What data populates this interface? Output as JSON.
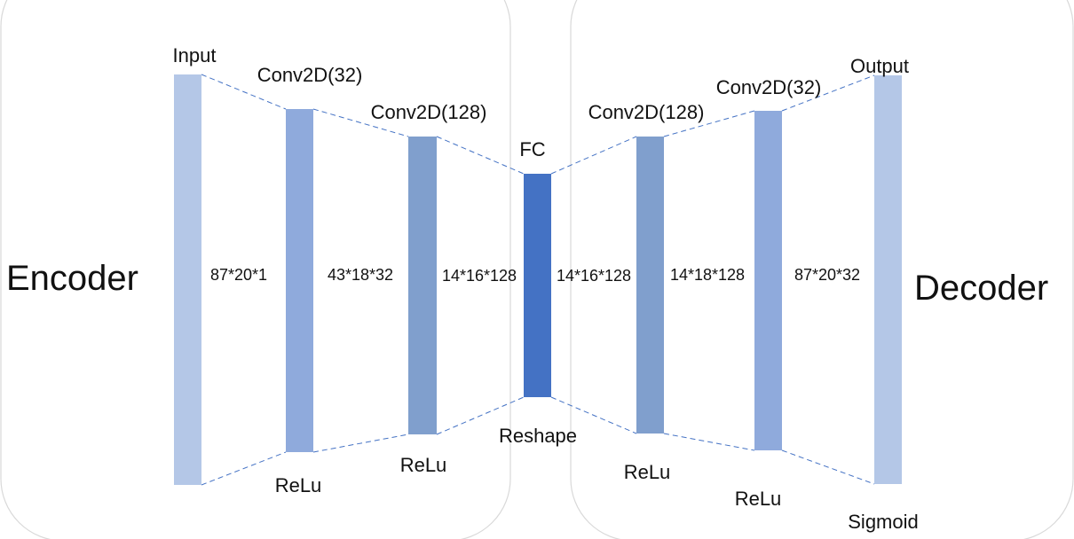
{
  "encoder": {
    "title": "Encoder",
    "layers": [
      {
        "name": "Input",
        "activation": "",
        "dims": "87*20*1"
      },
      {
        "name": "Conv2D(32)",
        "activation": "ReLu",
        "dims": "43*18*32"
      },
      {
        "name": "Conv2D(128)",
        "activation": "ReLu",
        "dims": "14*16*128"
      }
    ]
  },
  "bottleneck": {
    "name": "FC",
    "activation": "Reshape",
    "dims_right": "14*16*128"
  },
  "decoder": {
    "title": "Decoder",
    "layers": [
      {
        "name": "Conv2D(128)",
        "activation": "ReLu",
        "dims": "14*18*128"
      },
      {
        "name": "Conv2D(32)",
        "activation": "ReLu",
        "dims": "87*20*32"
      },
      {
        "name": "Output",
        "activation": "Sigmoid"
      }
    ]
  },
  "colors": {
    "input_output": "#b4c7e7",
    "conv32": "#8faadc",
    "conv128": "#809fcd",
    "fc": "#4472c4",
    "connector": "#4472c4",
    "panel_border": "#d9d9d9"
  }
}
